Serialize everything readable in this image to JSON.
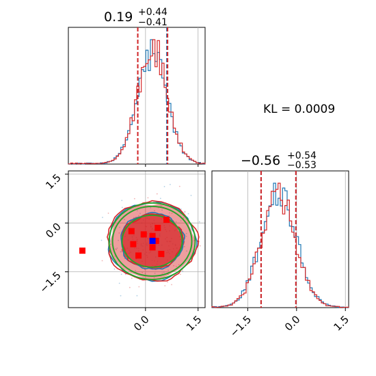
{
  "kl_label": "KL = 0.0009",
  "colors": {
    "blue": "#1f77b4",
    "red": "#d62728",
    "green": "#2ca02c",
    "marker_blue": "#0000ff",
    "marker_red": "#ff0000"
  },
  "chart_data": {
    "type": "corner",
    "x_range": [
      -2.2,
      1.7
    ],
    "y_range": [
      -2.6,
      1.6
    ],
    "x_ticks": [
      "0.0",
      "1.5"
    ],
    "y_ticks": [
      "1.5",
      "0.0",
      "−1.5"
    ],
    "x2_ticks": [
      "−1.5",
      "0.0",
      "1.5"
    ],
    "grid": true,
    "param1": {
      "median_text": "0.19",
      "upper_text": "+0.44",
      "lower_text": "−0.41",
      "median": 0.19,
      "q_low": -0.22,
      "q_high": 0.63,
      "series": [
        {
          "name": "",
          "color": "#1f77b4",
          "q_low": -0.22,
          "q_high": 0.61
        },
        {
          "name": "",
          "color": "#d62728",
          "q_low": -0.22,
          "q_high": 0.63
        }
      ]
    },
    "param2": {
      "median_text": "−0.56",
      "upper_text": "+0.54",
      "lower_text": "−0.53",
      "median": -0.56,
      "q_low": -1.09,
      "q_high": -0.02,
      "series": [
        {
          "name": "",
          "color": "#1f77b4",
          "q_low": -1.09,
          "q_high": -0.02
        },
        {
          "name": "",
          "color": "#d62728",
          "q_low": -1.09,
          "q_high": -0.02
        }
      ]
    },
    "red_markers": [
      [
        -1.8,
        -0.85
      ],
      [
        -0.4,
        -0.25
      ],
      [
        -0.35,
        -0.65
      ],
      [
        -0.2,
        -1.0
      ],
      [
        -0.05,
        -0.35
      ],
      [
        0.2,
        -0.4
      ],
      [
        0.2,
        -0.75
      ],
      [
        0.35,
        -0.15
      ],
      [
        0.45,
        -0.95
      ],
      [
        0.6,
        0.1
      ],
      [
        0.3,
        -0.55
      ]
    ],
    "blue_marker": [
      0.2,
      -0.55
    ]
  }
}
